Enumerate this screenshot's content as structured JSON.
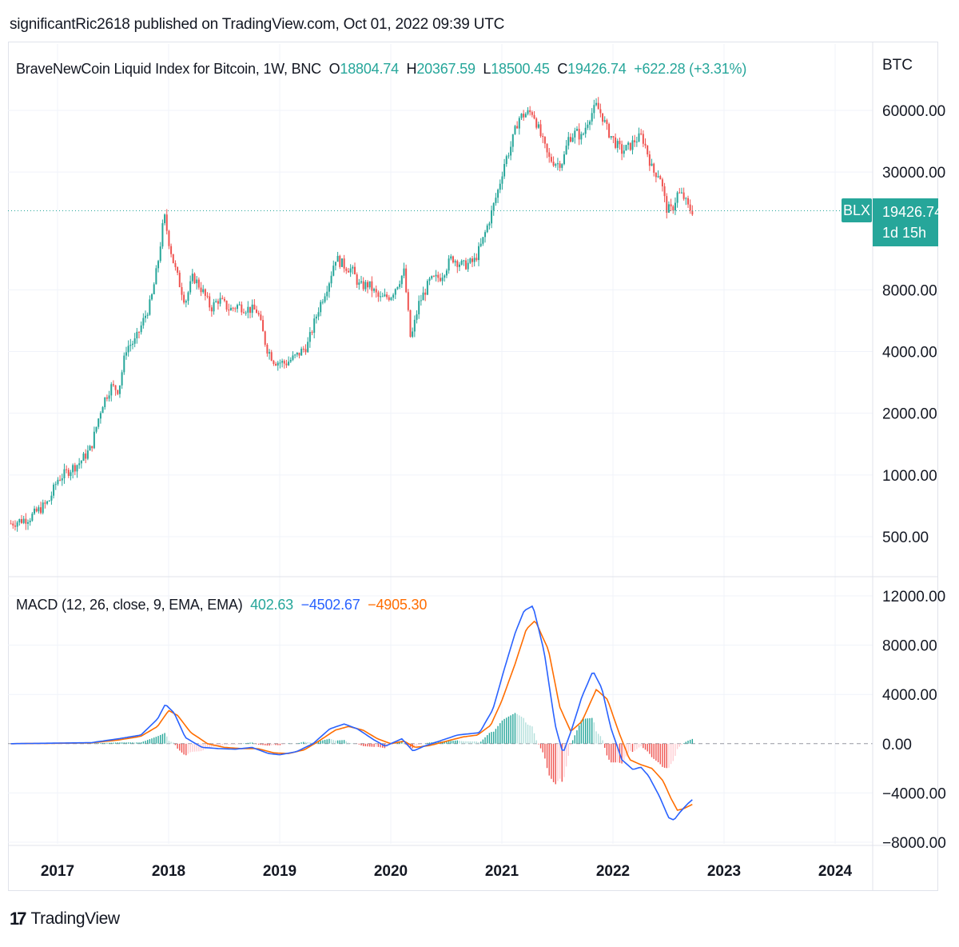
{
  "header": {
    "published": "significantRic2618 published on TradingView.com, Oct 01, 2022 09:39 UTC"
  },
  "legend": {
    "name": "BraveNewCoin Liquid Index for Bitcoin, 1W, BNC",
    "o_label": "O",
    "o_value": "18804.74",
    "h_label": "H",
    "h_value": "20367.59",
    "l_label": "L",
    "l_value": "18500.45",
    "c_label": "C",
    "c_value": "19426.74",
    "change": "+622.28 (+3.31%)"
  },
  "macd_legend": {
    "name": "MACD (12, 26, close, 9, EMA, EMA)",
    "hist": "402.63",
    "macd": "−4502.67",
    "signal": "−4905.30"
  },
  "price_axis": {
    "unit": "BTC",
    "ticks": [
      "60000.00",
      "30000.00",
      "8000.00",
      "4000.00",
      "2000.00",
      "1000.00",
      "500.00"
    ]
  },
  "macd_axis": {
    "ticks": [
      "12000.00",
      "8000.00",
      "4000.00",
      "0.00",
      "−4000.00",
      "−8000.00"
    ]
  },
  "time_axis": {
    "ticks": [
      "2017",
      "2018",
      "2019",
      "2020",
      "2021",
      "2022",
      "2023",
      "2024"
    ]
  },
  "last_price": {
    "symbol": "BLX",
    "value": "19426.74",
    "countdown": "1d 15h"
  },
  "colors": {
    "up": "#26a69a",
    "down": "#ef5350",
    "macd": "#2962ff",
    "signal": "#ff6d00",
    "grid": "#f0f3fa"
  },
  "brand": "TradingView",
  "chart_data": [
    {
      "type": "candlestick",
      "title": "BraveNewCoin Liquid Index for Bitcoin, 1W, BNC",
      "scale": "log",
      "ylim": [
        380,
        90000
      ],
      "xlim": [
        2016.6,
        2024.3
      ],
      "anchors": [
        [
          2016.58,
          580
        ],
        [
          2016.75,
          620
        ],
        [
          2016.92,
          740
        ],
        [
          2017.0,
          950
        ],
        [
          2017.1,
          1050
        ],
        [
          2017.2,
          1150
        ],
        [
          2017.3,
          1350
        ],
        [
          2017.4,
          2200
        ],
        [
          2017.48,
          2700
        ],
        [
          2017.55,
          2600
        ],
        [
          2017.62,
          4200
        ],
        [
          2017.7,
          4500
        ],
        [
          2017.78,
          5800
        ],
        [
          2017.84,
          7000
        ],
        [
          2017.9,
          10500
        ],
        [
          2017.96,
          18500
        ],
        [
          2018.0,
          14000
        ],
        [
          2018.05,
          10500
        ],
        [
          2018.1,
          8500
        ],
        [
          2018.15,
          7000
        ],
        [
          2018.22,
          9300
        ],
        [
          2018.3,
          8000
        ],
        [
          2018.38,
          6500
        ],
        [
          2018.45,
          7200
        ],
        [
          2018.55,
          6400
        ],
        [
          2018.62,
          6700
        ],
        [
          2018.7,
          6500
        ],
        [
          2018.8,
          6300
        ],
        [
          2018.88,
          4200
        ],
        [
          2018.95,
          3600
        ],
        [
          2019.05,
          3500
        ],
        [
          2019.15,
          3800
        ],
        [
          2019.25,
          4300
        ],
        [
          2019.35,
          6500
        ],
        [
          2019.45,
          9000
        ],
        [
          2019.5,
          11500
        ],
        [
          2019.58,
          10500
        ],
        [
          2019.65,
          10000
        ],
        [
          2019.72,
          8300
        ],
        [
          2019.8,
          8500
        ],
        [
          2019.9,
          7200
        ],
        [
          2020.0,
          7500
        ],
        [
          2020.12,
          9800
        ],
        [
          2020.18,
          4500
        ],
        [
          2020.25,
          6800
        ],
        [
          2020.35,
          8800
        ],
        [
          2020.45,
          9300
        ],
        [
          2020.55,
          11500
        ],
        [
          2020.65,
          10500
        ],
        [
          2020.75,
          11000
        ],
        [
          2020.82,
          13500
        ],
        [
          2020.9,
          18500
        ],
        [
          2020.97,
          25000
        ],
        [
          2021.02,
          33000
        ],
        [
          2021.08,
          40000
        ],
        [
          2021.15,
          55000
        ],
        [
          2021.22,
          58000
        ],
        [
          2021.28,
          59000
        ],
        [
          2021.35,
          45000
        ],
        [
          2021.42,
          35000
        ],
        [
          2021.5,
          33000
        ],
        [
          2021.55,
          34000
        ],
        [
          2021.6,
          44000
        ],
        [
          2021.67,
          47000
        ],
        [
          2021.72,
          44000
        ],
        [
          2021.78,
          55000
        ],
        [
          2021.85,
          63000
        ],
        [
          2021.9,
          57000
        ],
        [
          2021.95,
          48000
        ],
        [
          2022.03,
          41000
        ],
        [
          2022.08,
          38000
        ],
        [
          2022.15,
          40000
        ],
        [
          2022.2,
          43000
        ],
        [
          2022.26,
          45000
        ],
        [
          2022.3,
          39000
        ],
        [
          2022.36,
          30000
        ],
        [
          2022.42,
          29500
        ],
        [
          2022.48,
          20000
        ],
        [
          2022.53,
          19500
        ],
        [
          2022.58,
          23500
        ],
        [
          2022.63,
          23000
        ],
        [
          2022.68,
          20000
        ],
        [
          2022.72,
          19426
        ]
      ]
    },
    {
      "type": "macd",
      "title": "MACD (12, 26, close, 9, EMA, EMA)",
      "ylim": [
        -8000,
        12000
      ],
      "macd_anchors": [
        [
          2016.58,
          0
        ],
        [
          2017.3,
          80
        ],
        [
          2017.55,
          400
        ],
        [
          2017.75,
          700
        ],
        [
          2017.9,
          2000
        ],
        [
          2017.97,
          3200
        ],
        [
          2018.05,
          2500
        ],
        [
          2018.15,
          500
        ],
        [
          2018.3,
          -300
        ],
        [
          2018.45,
          -400
        ],
        [
          2018.6,
          -450
        ],
        [
          2018.75,
          -300
        ],
        [
          2018.9,
          -800
        ],
        [
          2019.0,
          -900
        ],
        [
          2019.15,
          -650
        ],
        [
          2019.3,
          0
        ],
        [
          2019.45,
          1200
        ],
        [
          2019.58,
          1600
        ],
        [
          2019.7,
          1200
        ],
        [
          2019.85,
          300
        ],
        [
          2019.95,
          -200
        ],
        [
          2020.1,
          400
        ],
        [
          2020.2,
          -600
        ],
        [
          2020.3,
          -200
        ],
        [
          2020.45,
          250
        ],
        [
          2020.6,
          700
        ],
        [
          2020.7,
          800
        ],
        [
          2020.8,
          900
        ],
        [
          2020.92,
          2800
        ],
        [
          2021.02,
          6000
        ],
        [
          2021.12,
          9000
        ],
        [
          2021.2,
          10800
        ],
        [
          2021.28,
          11200
        ],
        [
          2021.38,
          7500
        ],
        [
          2021.48,
          1500
        ],
        [
          2021.55,
          -800
        ],
        [
          2021.63,
          1200
        ],
        [
          2021.72,
          3800
        ],
        [
          2021.82,
          5900
        ],
        [
          2021.9,
          4500
        ],
        [
          2021.98,
          1300
        ],
        [
          2022.08,
          -1300
        ],
        [
          2022.18,
          -2100
        ],
        [
          2022.25,
          -1900
        ],
        [
          2022.32,
          -2600
        ],
        [
          2022.42,
          -4300
        ],
        [
          2022.5,
          -6000
        ],
        [
          2022.55,
          -6200
        ],
        [
          2022.6,
          -5600
        ],
        [
          2022.67,
          -4900
        ],
        [
          2022.72,
          -4502
        ]
      ],
      "signal_anchors": [
        [
          2016.58,
          0
        ],
        [
          2017.3,
          60
        ],
        [
          2017.55,
          300
        ],
        [
          2017.75,
          600
        ],
        [
          2017.9,
          1400
        ],
        [
          2018.0,
          2700
        ],
        [
          2018.08,
          2300
        ],
        [
          2018.2,
          900
        ],
        [
          2018.35,
          0
        ],
        [
          2018.5,
          -300
        ],
        [
          2018.65,
          -400
        ],
        [
          2018.8,
          -400
        ],
        [
          2018.95,
          -750
        ],
        [
          2019.08,
          -800
        ],
        [
          2019.22,
          -500
        ],
        [
          2019.35,
          200
        ],
        [
          2019.5,
          1100
        ],
        [
          2019.62,
          1400
        ],
        [
          2019.75,
          1100
        ],
        [
          2019.88,
          400
        ],
        [
          2020.0,
          0
        ],
        [
          2020.12,
          200
        ],
        [
          2020.22,
          -300
        ],
        [
          2020.35,
          -150
        ],
        [
          2020.5,
          200
        ],
        [
          2020.65,
          550
        ],
        [
          2020.78,
          700
        ],
        [
          2020.9,
          1500
        ],
        [
          2021.0,
          3500
        ],
        [
          2021.12,
          6500
        ],
        [
          2021.22,
          9300
        ],
        [
          2021.3,
          10000
        ],
        [
          2021.42,
          7600
        ],
        [
          2021.52,
          3000
        ],
        [
          2021.62,
          1000
        ],
        [
          2021.72,
          1800
        ],
        [
          2021.85,
          4400
        ],
        [
          2021.95,
          3600
        ],
        [
          2022.05,
          1000
        ],
        [
          2022.15,
          -1300
        ],
        [
          2022.25,
          -1700
        ],
        [
          2022.35,
          -2000
        ],
        [
          2022.45,
          -3000
        ],
        [
          2022.52,
          -4400
        ],
        [
          2022.58,
          -5400
        ],
        [
          2022.63,
          -5300
        ],
        [
          2022.72,
          -4905
        ]
      ]
    }
  ]
}
